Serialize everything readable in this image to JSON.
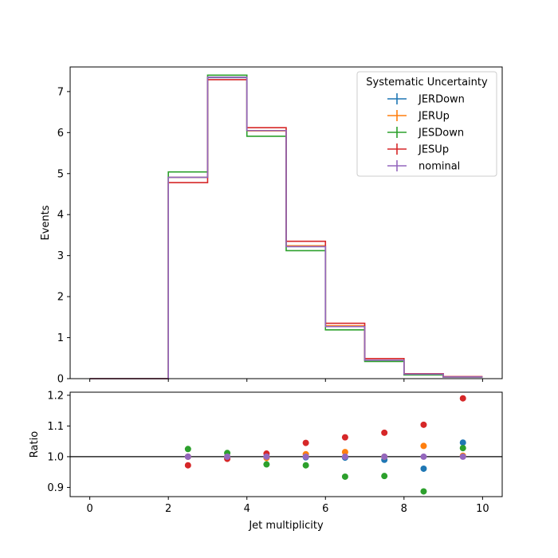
{
  "chart_data": {
    "type": "step",
    "xlabel": "Jet multiplicity",
    "bin_edges": [
      0,
      1,
      2,
      3,
      4,
      5,
      6,
      7,
      8,
      9,
      10
    ],
    "legend": {
      "title": "Systematic Uncertainty",
      "placement": "top-right"
    },
    "top_panel": {
      "ylabel": "Events",
      "ylim": [
        0,
        7.6
      ],
      "yticks": [
        "0",
        "1",
        "2",
        "3",
        "4",
        "5",
        "6",
        "7"
      ],
      "series": [
        {
          "name": "JERDown",
          "color": "#1f77b4",
          "values": [
            0,
            0,
            4.91,
            7.34,
            6.05,
            3.22,
            1.27,
            0.45,
            0.1,
            0.04
          ]
        },
        {
          "name": "JERUp",
          "color": "#ff7f0e",
          "values": [
            0,
            0,
            4.91,
            7.35,
            6.04,
            3.24,
            1.29,
            0.45,
            0.11,
            0.04
          ]
        },
        {
          "name": "JESDown",
          "color": "#2ca02c",
          "values": [
            0,
            0,
            5.04,
            7.4,
            5.91,
            3.12,
            1.19,
            0.42,
            0.09,
            0.04
          ]
        },
        {
          "name": "JESUp",
          "color": "#d62728",
          "values": [
            0,
            0,
            4.78,
            7.29,
            6.12,
            3.35,
            1.35,
            0.49,
            0.12,
            0.05
          ]
        },
        {
          "name": "nominal",
          "color": "#9467bd",
          "values": [
            0,
            0,
            4.91,
            7.35,
            6.05,
            3.22,
            1.27,
            0.45,
            0.11,
            0.04
          ]
        }
      ]
    },
    "ratio_panel": {
      "ylabel": "Ratio",
      "ylim": [
        0.87,
        1.21
      ],
      "yticks": [
        "0.9",
        "1.0",
        "1.1",
        "1.2"
      ],
      "xticks": [
        "0",
        "2",
        "4",
        "6",
        "8",
        "10"
      ],
      "reference": 1.0,
      "x": [
        2.5,
        3.5,
        4.5,
        5.5,
        6.5,
        7.5,
        8.5,
        9.5
      ],
      "series": [
        {
          "name": "JERDown",
          "color": "#1f77b4",
          "values": [
            1.0,
            0.998,
            1.0,
            0.998,
            0.997,
            0.99,
            0.961,
            1.046
          ]
        },
        {
          "name": "JERUp",
          "color": "#ff7f0e",
          "values": [
            1.0,
            1.0,
            0.996,
            1.008,
            1.015,
            1.0,
            1.035,
            1.003
          ]
        },
        {
          "name": "JESDown",
          "color": "#2ca02c",
          "values": [
            1.025,
            1.012,
            0.975,
            0.972,
            0.935,
            0.937,
            0.887,
            1.028
          ]
        },
        {
          "name": "JESUp",
          "color": "#d62728",
          "values": [
            0.972,
            0.993,
            1.01,
            1.045,
            1.063,
            1.078,
            1.104,
            1.19
          ]
        },
        {
          "name": "nominal",
          "color": "#9467bd",
          "values": [
            1.0,
            1.0,
            1.0,
            1.0,
            1.0,
            1.0,
            1.0,
            1.0
          ]
        }
      ]
    }
  }
}
